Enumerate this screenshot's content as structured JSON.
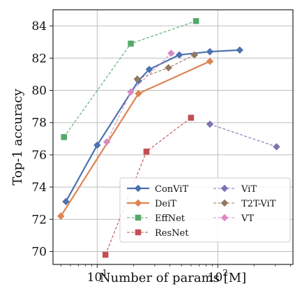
{
  "chart_data": {
    "type": "line",
    "xlabel": "Number of params [M]",
    "ylabel": "Top-1 accuracy",
    "xscale": "log",
    "xlim": [
      4.3,
      420
    ],
    "ylim": [
      69.2,
      85.0
    ],
    "yticks": [
      70,
      72,
      74,
      76,
      78,
      80,
      82,
      84
    ],
    "xticks": [
      {
        "value": 10,
        "base": "10",
        "exp": "1"
      },
      {
        "value": 100,
        "base": "10",
        "exp": "2"
      }
    ],
    "grid": true,
    "legend": {
      "placement": "bottom-right",
      "columns": 2
    },
    "series": [
      {
        "name": "ConViT",
        "color": "#4c72b0",
        "style": "solid",
        "marker": "diamond",
        "x": [
          5.5,
          10,
          22,
          27,
          48,
          86,
          152
        ],
        "y": [
          73.1,
          76.6,
          80.6,
          81.3,
          82.2,
          82.4,
          82.5
        ]
      },
      {
        "name": "DeiT",
        "color": "#dd8452",
        "style": "solid",
        "marker": "diamond",
        "x": [
          5,
          22,
          86
        ],
        "y": [
          72.2,
          79.8,
          81.8
        ]
      },
      {
        "name": "EffNet",
        "color": "#55a868",
        "style": "dashed",
        "marker": "square",
        "x": [
          5.3,
          19,
          66
        ],
        "y": [
          77.1,
          82.9,
          84.3
        ]
      },
      {
        "name": "ResNet",
        "color": "#c44e52",
        "style": "dashed",
        "marker": "square",
        "x": [
          11.7,
          25.6,
          60
        ],
        "y": [
          69.8,
          76.2,
          78.3
        ]
      },
      {
        "name": "ViT",
        "color": "#8172b3",
        "style": "dashed",
        "marker": "diamond",
        "x": [
          86,
          307
        ],
        "y": [
          77.9,
          76.5
        ]
      },
      {
        "name": "T2T-ViT",
        "color": "#937860",
        "style": "dashed",
        "marker": "diamond",
        "x": [
          21.5,
          39,
          64
        ],
        "y": [
          80.7,
          81.4,
          82.2
        ]
      },
      {
        "name": "VT",
        "color": "#da8bc3",
        "style": "dashed",
        "marker": "diamond",
        "x": [
          12,
          19,
          41
        ],
        "y": [
          76.8,
          79.9,
          82.3
        ]
      }
    ]
  }
}
